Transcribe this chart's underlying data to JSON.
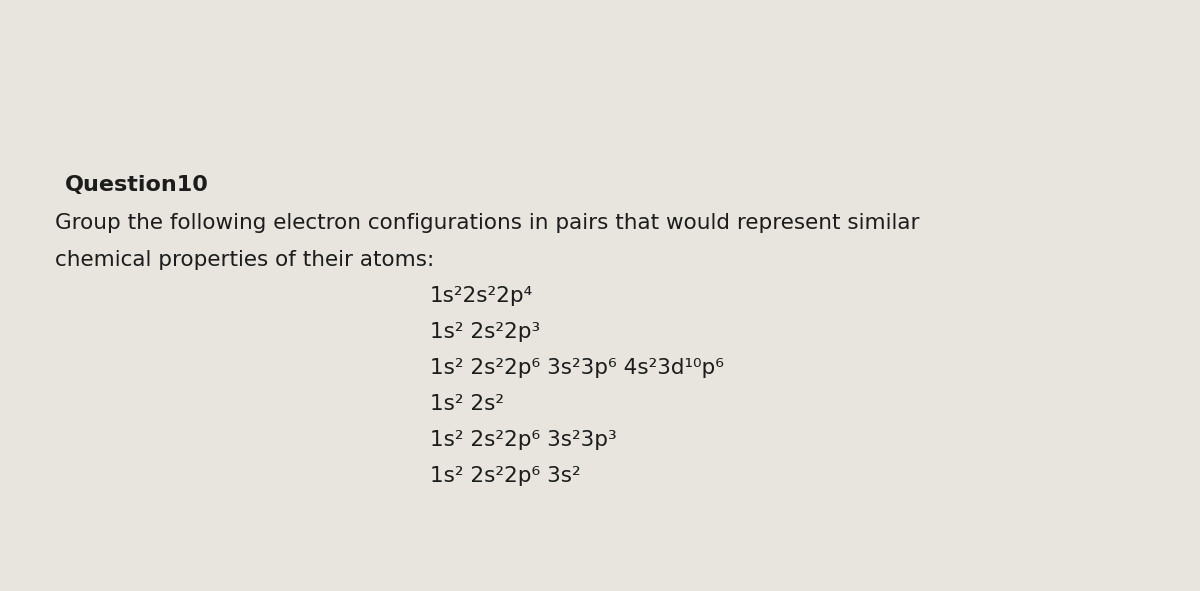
{
  "background_color": "#e8e4de",
  "title": "Question10",
  "title_fontsize": 16,
  "title_bold": true,
  "body_text_line1": "Group the following electron configurations in pairs that would represent similar",
  "body_text_line2": "chemical properties of their atoms:",
  "body_fontsize": 15.5,
  "configs": [
    "1s²2s²2p⁴",
    "1s² 2s²2p³",
    "1s² 2s²2p⁶ 3s²3p⁶ 4s²3d¹⁰p⁶",
    "1s² 2s²",
    "1s² 2s²2p⁶ 3s²3p³",
    "1s² 2s²2p⁶ 3s²"
  ],
  "configs_fontsize": 15.5,
  "text_color": "#1c1c1c"
}
